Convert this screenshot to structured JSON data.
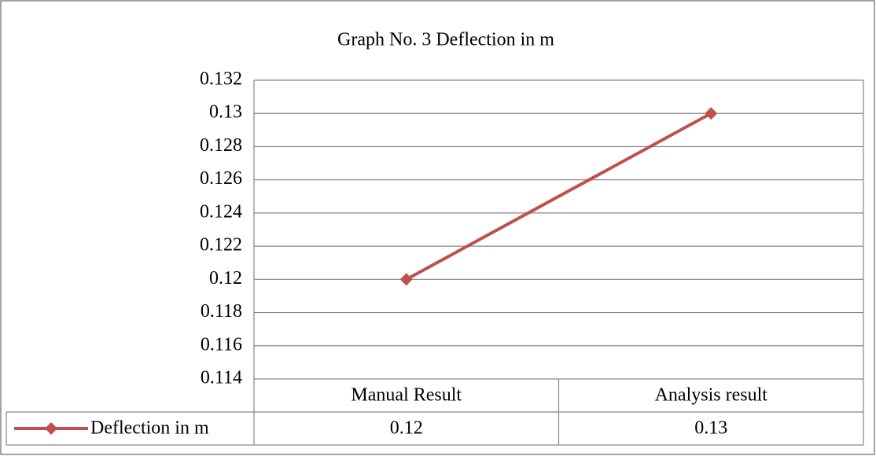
{
  "chart_data": {
    "type": "line",
    "title": "Graph No. 3 Deflection in m",
    "categories": [
      "Manual Result",
      "Analysis result"
    ],
    "series": [
      {
        "name": "Deflection in m",
        "color": "#c0504d",
        "values": [
          0.12,
          0.13
        ]
      }
    ],
    "ylim": [
      0.114,
      0.132
    ],
    "yticks": [
      0.114,
      0.116,
      0.118,
      0.12,
      0.122,
      0.124,
      0.126,
      0.128,
      0.13,
      0.132
    ],
    "grid": true,
    "data_table": true
  }
}
